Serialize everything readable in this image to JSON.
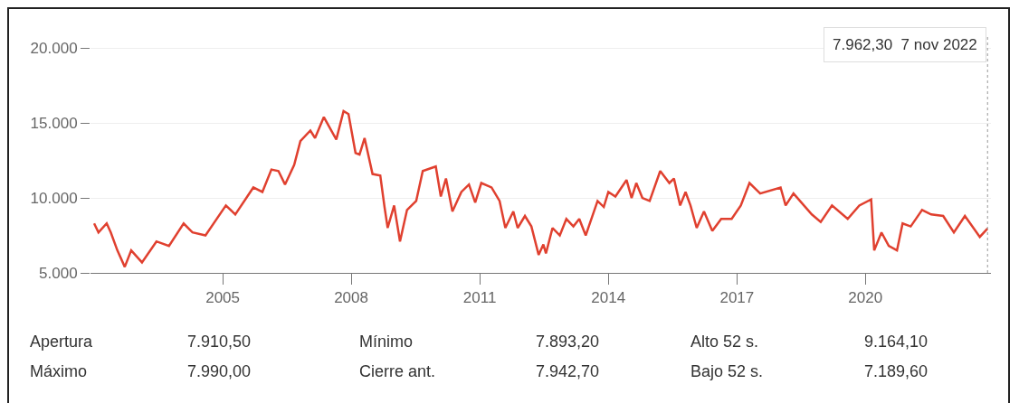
{
  "chart_data": {
    "type": "line",
    "x": [
      "2002-01-01",
      "2002-02-07",
      "2002-04-18",
      "2002-05-23",
      "2002-07-18",
      "2002-09-19",
      "2002-11-13",
      "2003-02-13",
      "2003-06-16",
      "2003-10-01",
      "2004-02-03",
      "2004-04-18",
      "2004-08-07",
      "2005-01-28",
      "2005-04-18",
      "2005-09-19",
      "2005-12-05",
      "2006-02-20",
      "2006-04-21",
      "2006-06-16",
      "2006-09-02",
      "2006-10-25",
      "2007-01-18",
      "2007-02-27",
      "2007-05-13",
      "2007-08-27",
      "2007-10-28",
      "2007-12-09",
      "2008-02-07",
      "2008-03-12",
      "2008-04-24",
      "2008-07-01",
      "2008-09-05",
      "2008-10-11",
      "2008-11-07",
      "2009-01-01",
      "2009-02-20",
      "2009-04-21",
      "2009-07-08",
      "2009-09-02",
      "2009-12-22",
      "2010-02-03",
      "2010-03-19",
      "2010-05-13",
      "2010-07-28",
      "2010-10-01",
      "2010-11-23",
      "2011-01-14",
      "2011-04-11",
      "2011-06-19",
      "2011-08-07",
      "2011-10-14",
      "2011-11-20",
      "2012-01-21",
      "2012-03-16",
      "2012-05-17",
      "2012-06-26",
      "2012-07-18",
      "2012-09-12",
      "2012-11-13",
      "2013-01-08",
      "2013-03-09",
      "2013-04-28",
      "2013-06-22",
      "2013-10-01",
      "2013-11-23",
      "2014-01-01",
      "2014-03-02",
      "2014-06-05",
      "2014-07-18",
      "2014-08-27",
      "2014-10-18",
      "2014-12-19",
      "2015-03-19",
      "2015-06-05",
      "2015-07-14",
      "2015-09-05",
      "2015-10-21",
      "2015-12-02",
      "2016-01-24",
      "2016-03-26",
      "2016-06-05",
      "2016-08-20",
      "2016-11-17",
      "2017-02-03",
      "2017-04-18",
      "2017-07-18",
      "2018-01-08",
      "2018-02-20",
      "2018-04-28",
      "2018-10-01",
      "2018-12-16",
      "2019-03-22",
      "2019-08-03",
      "2019-11-10",
      "2020-02-19",
      "2020-03-16",
      "2020-05-17",
      "2020-07-18",
      "2020-09-26",
      "2020-11-13",
      "2021-01-21",
      "2021-04-28",
      "2021-07-14",
      "2021-10-25",
      "2022-01-24",
      "2022-04-28",
      "2022-09-02",
      "2022-11-07"
    ],
    "series": [
      {
        "color": "#e0402f",
        "values": [
          8300,
          7700,
          8300,
          7700,
          6500,
          5400,
          6500,
          5700,
          7100,
          6800,
          8300,
          7700,
          7500,
          9500,
          8900,
          10700,
          10400,
          11900,
          11800,
          10900,
          12200,
          13800,
          14500,
          14000,
          15400,
          13900,
          15800,
          15600,
          13000,
          12900,
          14000,
          11600,
          11500,
          9400,
          8000,
          9500,
          7100,
          9200,
          9800,
          11800,
          12100,
          10100,
          11300,
          9100,
          10400,
          10900,
          9700,
          11000,
          10700,
          9800,
          8000,
          9100,
          8000,
          8800,
          8100,
          6200,
          6900,
          6300,
          8000,
          7500,
          8600,
          8100,
          8600,
          7500,
          9800,
          9400,
          10400,
          10100,
          11200,
          10000,
          11000,
          10000,
          9800,
          11800,
          11000,
          11300,
          9500,
          10400,
          9500,
          8000,
          9100,
          7800,
          8600,
          8600,
          9500,
          11000,
          10300,
          10700,
          9500,
          10300,
          8900,
          8400,
          9500,
          8600,
          9500,
          9900,
          6500,
          7700,
          6800,
          6500,
          8300,
          8100,
          9200,
          8900,
          8800,
          7700,
          8800,
          7400,
          7960
        ]
      }
    ],
    "xlim": [
      "2001-12-01",
      "2022-12-06"
    ],
    "ylim": [
      5000,
      20800
    ],
    "xticks": [
      {
        "value": "2005-01-01",
        "label": "2005"
      },
      {
        "value": "2008-01-01",
        "label": "2008"
      },
      {
        "value": "2011-01-01",
        "label": "2011"
      },
      {
        "value": "2014-01-01",
        "label": "2014"
      },
      {
        "value": "2017-01-01",
        "label": "2017"
      },
      {
        "value": "2020-01-01",
        "label": "2020"
      }
    ],
    "yticks": [
      {
        "value": 5000,
        "label": "5.000"
      },
      {
        "value": 10000,
        "label": "10.000"
      },
      {
        "value": 15000,
        "label": "15.000"
      },
      {
        "value": 20000,
        "label": "20.000"
      }
    ],
    "grid": "y",
    "ref_lines": [
      {
        "axis": "x",
        "value": "2022-11-07",
        "color": "#999999",
        "line_style": "dotted"
      }
    ],
    "annotations": [
      "7.962,30  7 nov 2022",
      "Apertura",
      "7.910,50",
      "Mínimo",
      "7.893,20",
      "Alto 52 s.",
      "9.164,10",
      "Máximo",
      "7.990,00",
      "Cierre ant.",
      "7.942,70",
      "Bajo 52 s.",
      "7.189,60"
    ]
  }
}
